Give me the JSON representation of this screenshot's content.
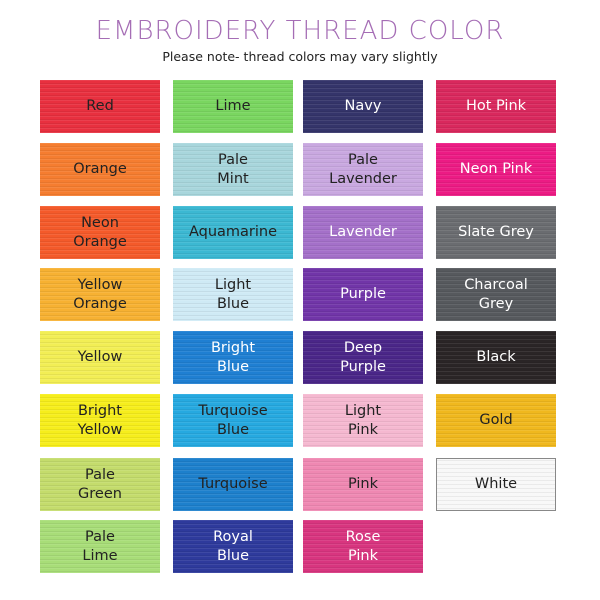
{
  "header": {
    "title": "EMBROIDERY THREAD COLOR",
    "subtitle": "Please note- thread colors may vary slightly",
    "title_color": "#a56db5"
  },
  "columns": [
    [
      {
        "label": "Red",
        "color": "#e8303f",
        "text": "#222"
      },
      {
        "label": "Orange",
        "color": "#f57d30",
        "text": "#222"
      },
      {
        "label": "Neon\nOrange",
        "color": "#f45a2a",
        "text": "#222"
      },
      {
        "label": "Yellow\nOrange",
        "color": "#f7b132",
        "text": "#222"
      },
      {
        "label": "Yellow",
        "color": "#f2ee55",
        "text": "#222"
      },
      {
        "label": "Bright\nYellow",
        "color": "#f6ee1c",
        "text": "#222"
      },
      {
        "label": "Pale\nGreen",
        "color": "#c4dc6c",
        "text": "#222"
      },
      {
        "label": "Pale\nLime",
        "color": "#a8dd78",
        "text": "#222"
      }
    ],
    [
      {
        "label": "Lime",
        "color": "#7ad660",
        "text": "#222"
      },
      {
        "label": "Pale\nMint",
        "color": "#a8d6dc",
        "text": "#222"
      },
      {
        "label": "Aquamarine",
        "color": "#3cb8d2",
        "text": "#222"
      },
      {
        "label": "Light\nBlue",
        "color": "#cfeaf5",
        "text": "#222"
      },
      {
        "label": "Bright\nBlue",
        "color": "#1f7fd2",
        "text": "#fff"
      },
      {
        "label": "Turquoise\nBlue",
        "color": "#26a9e0",
        "text": "#222"
      },
      {
        "label": "Turquoise",
        "color": "#1d80cc",
        "text": "#222"
      },
      {
        "label": "Royal\nBlue",
        "color": "#2e3a9c",
        "text": "#fff"
      }
    ],
    [
      {
        "label": "Navy",
        "color": "#34346a",
        "text": "#fff"
      },
      {
        "label": "Pale\nLavender",
        "color": "#c9a8e0",
        "text": "#222"
      },
      {
        "label": "Lavender",
        "color": "#a470c9",
        "text": "#fff"
      },
      {
        "label": "Purple",
        "color": "#7135a8",
        "text": "#fff"
      },
      {
        "label": "Deep\nPurple",
        "color": "#4a2688",
        "text": "#fff"
      },
      {
        "label": "Light\nPink",
        "color": "#f5b8d0",
        "text": "#222"
      },
      {
        "label": "Pink",
        "color": "#ef88b2",
        "text": "#222"
      },
      {
        "label": "Rose\nPink",
        "color": "#d8357f",
        "text": "#fff"
      }
    ],
    [
      {
        "label": "Hot Pink",
        "color": "#d9285d",
        "text": "#fff"
      },
      {
        "label": "Neon Pink",
        "color": "#ec1b84",
        "text": "#fff"
      },
      {
        "label": "Slate Grey",
        "color": "#6a6c70",
        "text": "#fff"
      },
      {
        "label": "Charcoal\nGrey",
        "color": "#56595d",
        "text": "#fff"
      },
      {
        "label": "Black",
        "color": "#2a2526",
        "text": "#fff"
      },
      {
        "label": "Gold",
        "color": "#f0b81e",
        "text": "#222"
      },
      {
        "label": "White",
        "color": "#f8f8f8",
        "text": "#222"
      }
    ]
  ]
}
